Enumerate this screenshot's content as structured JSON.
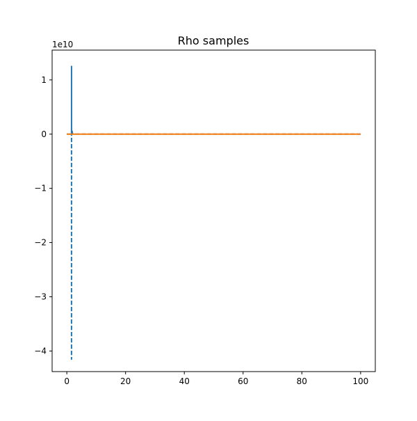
{
  "chart_data": {
    "type": "line",
    "title": "Rho samples",
    "xlabel": "",
    "ylabel": "",
    "y_offset_label": "1e10",
    "y_scale_factor": 10000000000,
    "xlim": [
      -5,
      105
    ],
    "ylim": [
      -4.38,
      1.55
    ],
    "x_ticks": [
      0,
      20,
      40,
      60,
      80,
      100
    ],
    "y_ticks": [
      -4,
      -3,
      -2,
      -1,
      0,
      1
    ],
    "y_tick_labels": [
      "−4",
      "−3",
      "−2",
      "−1",
      "0",
      "1"
    ],
    "grid": false,
    "legend": "none",
    "series": [
      {
        "color": "#1f77b4",
        "style": "dashed",
        "x": [
          0,
          1.6,
          1.6,
          1.6,
          1.6,
          1.6,
          1.6,
          1.6,
          1.6,
          2.0,
          100
        ],
        "y": [
          0,
          0,
          1.25,
          -4.15,
          1.0,
          0.9,
          0.7,
          0.5,
          0.1,
          0,
          0
        ]
      },
      {
        "color": "#ff7f0e",
        "style": "solid",
        "x": [
          0,
          100
        ],
        "y": [
          0,
          0
        ]
      }
    ]
  }
}
